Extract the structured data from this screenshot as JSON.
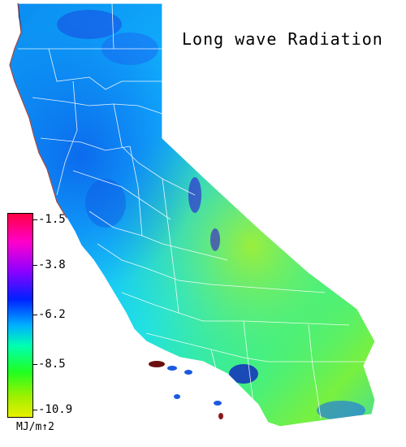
{
  "map": {
    "title": "Long wave Radiation",
    "region": "California counties"
  },
  "legend": {
    "ticks": [
      "-1.5",
      "-3.8",
      "-6.2",
      "-8.5",
      "-10.9"
    ],
    "unit": "MJ/m↑2"
  },
  "colors": {
    "high": "#ff0044",
    "mid_high": "#ff00cc",
    "mid": "#0020ff",
    "mid_low": "#00ffb0",
    "low": "#e8f000"
  }
}
